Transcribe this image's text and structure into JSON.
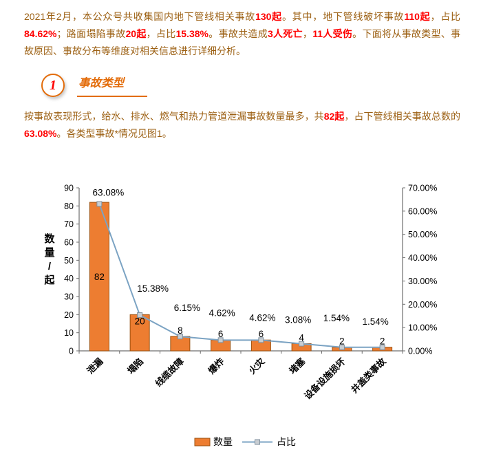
{
  "intro": {
    "segments": [
      {
        "text": "2021年2月，本公众号共收集国内地下管线相关事故",
        "highlight": false
      },
      {
        "text": "130起",
        "highlight": true
      },
      {
        "text": "。其中，地下管线破坏事故",
        "highlight": false
      },
      {
        "text": "110起",
        "highlight": true
      },
      {
        "text": "，占比",
        "highlight": false
      },
      {
        "text": "84.62%",
        "highlight": true
      },
      {
        "text": "；路面塌陷事故",
        "highlight": false
      },
      {
        "text": "20起",
        "highlight": true
      },
      {
        "text": "，占比",
        "highlight": false
      },
      {
        "text": "15.38%",
        "highlight": true
      },
      {
        "text": "。事故共造成",
        "highlight": false
      },
      {
        "text": "3人死亡",
        "highlight": true
      },
      {
        "text": "，",
        "highlight": false
      },
      {
        "text": "11人受伤",
        "highlight": true
      },
      {
        "text": "。下面将从事故类型、事故原因、事故分布等维度对相关信息进行详细分析。",
        "highlight": false
      }
    ]
  },
  "section": {
    "number": "1",
    "title": "事故类型"
  },
  "analysis": {
    "segments": [
      {
        "text": "按事故表现形式，给水、排水、燃气和热力管道泄漏事故数量最多，共",
        "highlight": false
      },
      {
        "text": "82起",
        "highlight": true
      },
      {
        "text": "，占下管线相关事故总数的",
        "highlight": false
      },
      {
        "text": "63.08%",
        "highlight": true
      },
      {
        "text": "。各类型事故*情况见图1。",
        "highlight": false
      }
    ]
  },
  "chart_data": {
    "type": "bar",
    "subtype": "combo-bar-line",
    "title": "",
    "categories": [
      "泄漏",
      "塌陷",
      "线缆故障",
      "爆炸",
      "火灾",
      "堵塞",
      "设备设施损坏",
      "井盖类事故"
    ],
    "series": [
      {
        "name": "数量",
        "type": "bar",
        "values": [
          82,
          20,
          8,
          6,
          6,
          4,
          2,
          2
        ]
      },
      {
        "name": "占比",
        "type": "line",
        "values": [
          63.08,
          15.38,
          6.15,
          4.62,
          4.62,
          3.08,
          1.54,
          1.54
        ],
        "unit": "%"
      }
    ],
    "point_labels": [
      "63.08%",
      "15.38%",
      "6.15%",
      "4.62%",
      "4.62%",
      "3.08%",
      "1.54%",
      "1.54%"
    ],
    "left_axis": {
      "label": "数量/起",
      "min": 0,
      "max": 90,
      "step": 10,
      "ticks": [
        "0",
        "10",
        "20",
        "30",
        "40",
        "50",
        "60",
        "70",
        "80",
        "90"
      ]
    },
    "right_axis": {
      "min": 0,
      "max": 70,
      "step": 10,
      "ticks": [
        "0.00%",
        "10.00%",
        "20.00%",
        "30.00%",
        "40.00%",
        "50.00%",
        "60.00%",
        "70.00%"
      ]
    },
    "legend": [
      "数量",
      "占比"
    ],
    "legend_position": "bottom",
    "grid": false,
    "colors": {
      "bar": "#ed7d31",
      "bar_border": "#99500f",
      "line": "#7ba3c3",
      "marker_fill": "#c9ced3",
      "marker_border": "#7f8f9c",
      "axis": "#6e6e6e",
      "text": "#000000"
    }
  },
  "theme": {
    "body_text": "#9c6013",
    "highlight": "#ff0000",
    "accent": "#e36c0a"
  }
}
